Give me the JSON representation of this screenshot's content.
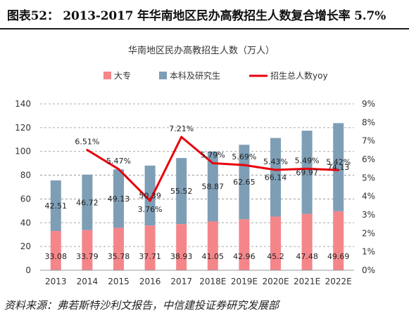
{
  "figure": {
    "title": "图表52：  2013-2017 年华南地区民办高教招生人数复合增长率 5.7%",
    "source": "资料来源：弗若斯特沙利文报告，中信建投证券研究发展部"
  },
  "chart_data": {
    "type": "bar",
    "stacked": true,
    "title": "华南地区民办高教招生人数（万人）",
    "categories": [
      "2013",
      "2014",
      "2015",
      "2016",
      "2017",
      "2018E",
      "2019E",
      "2020E",
      "2021E",
      "2022E"
    ],
    "series": [
      {
        "name": "大专",
        "type": "bar",
        "axis": "left",
        "color": "#f4868a",
        "values": [
          33.08,
          33.79,
          35.78,
          37.71,
          38.93,
          41.05,
          42.96,
          45.2,
          47.48,
          49.69
        ],
        "labels": [
          "33.08",
          "33.79",
          "35.78",
          "37.71",
          "38.93",
          "41.05",
          "42.96",
          "45.2",
          "47.48",
          "49.69"
        ]
      },
      {
        "name": "本科及研究生",
        "type": "bar",
        "axis": "left",
        "color": "#7e9eb6",
        "values": [
          42.51,
          46.72,
          49.13,
          50.39,
          55.52,
          58.87,
          62.65,
          66.14,
          69.97,
          74.13
        ],
        "labels": [
          "42.51",
          "46.72",
          "49.13",
          "50.39",
          "55.52",
          "58.87",
          "62.65",
          "66.14",
          "69.97",
          "74.13"
        ]
      },
      {
        "name": "招生总人数yoy",
        "type": "line",
        "axis": "right",
        "color": "#e8000b",
        "values": [
          null,
          6.51,
          5.47,
          3.76,
          7.21,
          5.79,
          5.69,
          5.43,
          5.49,
          5.42
        ],
        "labels": [
          "",
          "6.51%",
          "5.47%",
          "3.76%",
          "7.21%",
          "5.79%",
          "5.69%",
          "5.43%",
          "5.49%",
          "5.42%"
        ]
      }
    ],
    "y_left": {
      "min": 0,
      "max": 140,
      "ticks": [
        "0",
        "20",
        "40",
        "60",
        "80",
        "100",
        "120",
        "140"
      ]
    },
    "y_right": {
      "min": 0,
      "max": 9,
      "ticks": [
        "0%",
        "1%",
        "2%",
        "3%",
        "4%",
        "5%",
        "6%",
        "7%",
        "8%",
        "9%"
      ]
    },
    "grid": "horizontal dashed",
    "legend_position": "top"
  }
}
